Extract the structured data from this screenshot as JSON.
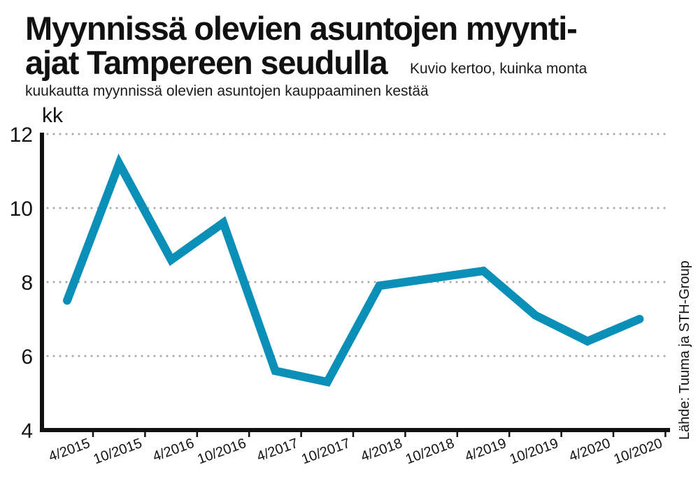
{
  "title_lines": [
    "Myynnissä olevien asuntojen myynti-",
    "ajat Tampereen seudulla"
  ],
  "subtitle_lead": "Kuvio kertoo, kuinka monta",
  "subtitle_rest": "kuukautta myynnissä olevien asuntojen kauppaaminen kestää",
  "source": "Lähde: Tuuma ja STH-Group",
  "colors": {
    "line": "#0a8fb8",
    "axis": "#111111",
    "grid": "#a6a6a6"
  },
  "chart_data": {
    "type": "line",
    "title": "Myynnissä olevien asuntojen myynti-ajat Tampereen seudulla",
    "ylabel": "kk",
    "xlabel": "",
    "categories": [
      "4/2015",
      "10/2015",
      "4/2016",
      "10/2016",
      "4/2017",
      "10/2017",
      "4/2018",
      "10/2018",
      "4/2019",
      "10/2019",
      "4/2020",
      "10/2020"
    ],
    "series": [
      {
        "values": [
          7.5,
          11.2,
          8.6,
          9.6,
          5.6,
          5.3,
          7.9,
          8.1,
          8.3,
          7.1,
          6.4,
          7.0
        ]
      }
    ],
    "yticks": [
      4,
      6,
      8,
      10,
      12
    ],
    "ylim": [
      4,
      12
    ],
    "grid": "dotted horizontal"
  }
}
